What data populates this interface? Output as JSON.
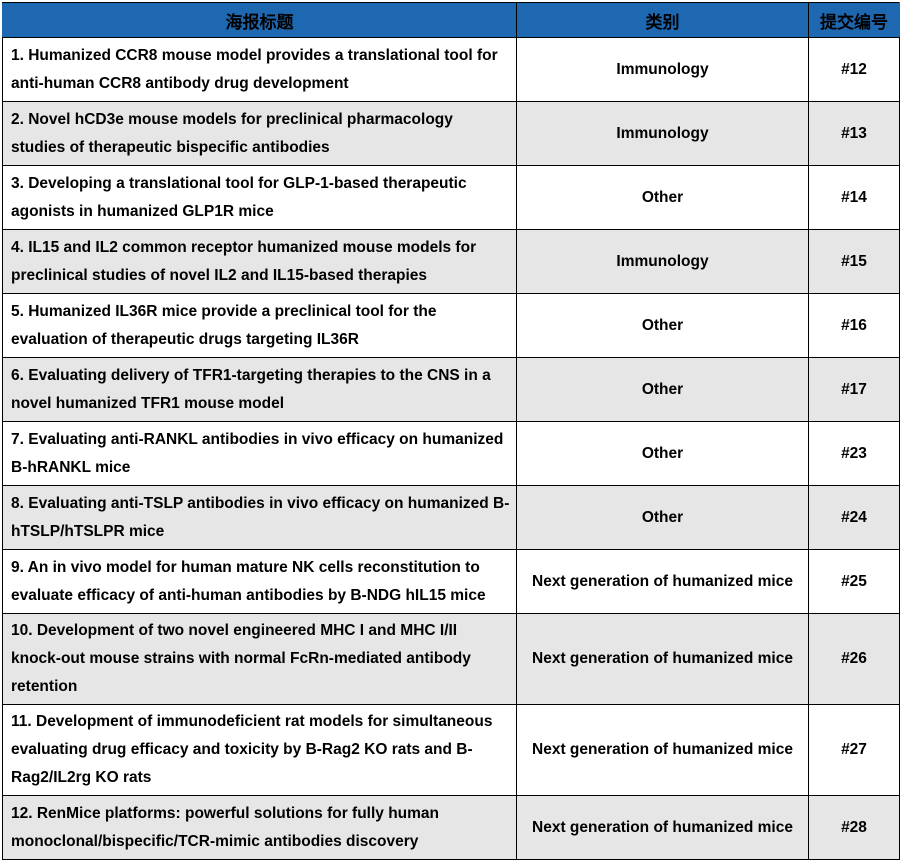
{
  "colors": {
    "header_bg": "#1E68B2",
    "header_text": "#FFFFFF",
    "row_bg": "#FFFFFF",
    "row_alt_bg": "#E6E6E6",
    "border": "#000000",
    "text": "#000000"
  },
  "table": {
    "headers": [
      {
        "label": "海报标题"
      },
      {
        "label": "类别"
      },
      {
        "label": "提交编号"
      }
    ],
    "rows": [
      {
        "title": "1. Humanized CCR8 mouse model provides a translational tool for anti-human CCR8 antibody drug development",
        "category": "Immunology",
        "submission_id": "#12"
      },
      {
        "title": "2. Novel hCD3e mouse models for preclinical pharmacology studies of therapeutic bispecific antibodies",
        "category": "Immunology",
        "submission_id": "#13"
      },
      {
        "title": "3. Developing a translational tool for GLP-1-based therapeutic agonists in humanized GLP1R mice",
        "category": "Other",
        "submission_id": "#14"
      },
      {
        "title": "4. IL15 and IL2 common receptor humanized mouse models for preclinical studies of novel IL2 and IL15-based therapies",
        "category": "Immunology",
        "submission_id": "#15"
      },
      {
        "title": "5. Humanized IL36R mice provide a preclinical tool for the evaluation of therapeutic drugs targeting IL36R",
        "category": "Other",
        "submission_id": "#16"
      },
      {
        "title": "6. Evaluating delivery of TFR1-targeting therapies to the CNS in a novel humanized TFR1 mouse model",
        "category": "Other",
        "submission_id": "#17"
      },
      {
        "title": "7. Evaluating anti-RANKL antibodies in vivo efficacy on humanized B-hRANKL mice",
        "category": "Other",
        "submission_id": "#23"
      },
      {
        "title": "8. Evaluating anti-TSLP antibodies in vivo efficacy on humanized B-hTSLP/hTSLPR mice",
        "category": "Other",
        "submission_id": "#24"
      },
      {
        "title": "9. An in vivo model for human mature NK cells reconstitution to evaluate efficacy of anti-human antibodies by B-NDG hIL15 mice",
        "category": "Next generation of humanized mice",
        "submission_id": "#25"
      },
      {
        "title": "10. Development of two novel engineered MHC I and MHC I/II knock-out mouse strains with normal FcRn-mediated antibody retention",
        "category": "Next generation of humanized mice",
        "submission_id": "#26"
      },
      {
        "title": "11. Development of immunodeficient rat models for simultaneous evaluating drug efficacy and toxicity by B-Rag2 KO rats and B-Rag2/IL2rg KO rats",
        "category": "Next generation of humanized mice",
        "submission_id": "#27"
      },
      {
        "title": "12. RenMice platforms: powerful solutions for fully human monoclonal/bispecific/TCR-mimic antibodies discovery",
        "category": "Next generation of humanized mice",
        "submission_id": "#28"
      }
    ]
  }
}
